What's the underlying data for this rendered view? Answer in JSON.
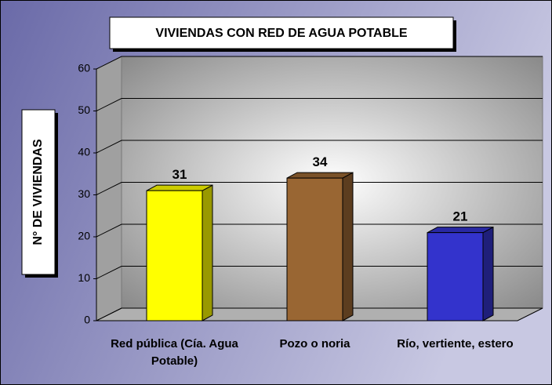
{
  "chart_data": {
    "type": "bar",
    "title": "VIVIENDAS CON RED DE AGUA POTABLE",
    "y_label": "N° DE VIVIENDAS",
    "categories": [
      "Red pública (Cía. Agua Potable)",
      "Pozo o noria",
      "Río, vertiente, estero"
    ],
    "values": [
      31,
      34,
      21
    ],
    "colors": [
      "#ffff00",
      "#996633",
      "#3333cc"
    ],
    "ylim": [
      0,
      60
    ],
    "yticks": [
      0,
      10,
      20,
      30,
      40,
      50,
      60
    ],
    "grid": true
  }
}
